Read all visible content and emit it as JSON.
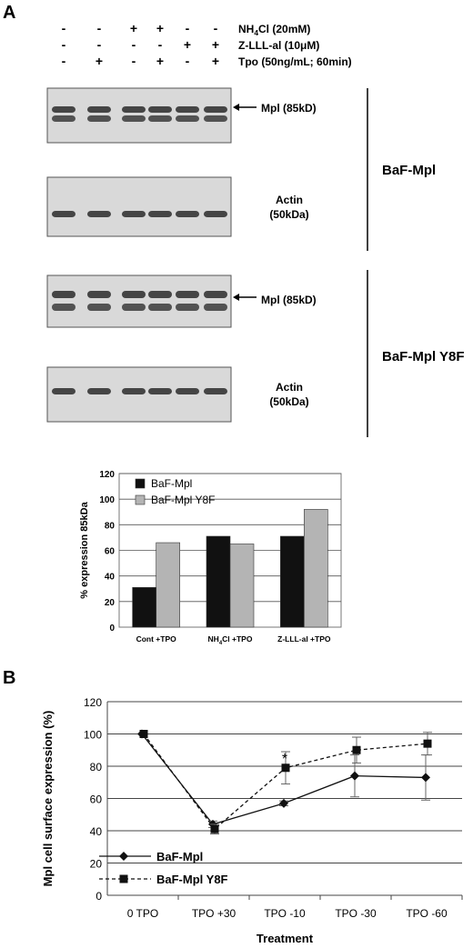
{
  "panel_a": {
    "letter": "A",
    "treatments": [
      {
        "label_main": "NH",
        "label_sub": "4",
        "label_rest": "Cl (20mM)",
        "signs": [
          "-",
          "-",
          "+",
          "+",
          "-",
          "-"
        ]
      },
      {
        "label_main": "Z-LLL-al (10",
        "label_sub": "",
        "label_rest": "μM)",
        "signs": [
          "-",
          "-",
          "-",
          "-",
          "+",
          "+"
        ]
      },
      {
        "label_main": "Tpo (50ng/mL; 60min)",
        "label_sub": "",
        "label_rest": "",
        "signs": [
          "-",
          "+",
          "-",
          "+",
          "-",
          "+"
        ]
      }
    ],
    "blot_labels": {
      "mpl": "Mpl (85kD)",
      "actin_line1": "Actin",
      "actin_line2": "(50kDa)"
    },
    "cell_lines": [
      "BaF-Mpl",
      "BaF-Mpl Y8F"
    ]
  },
  "panel_b_letter": "B",
  "chart_data": [
    {
      "type": "bar",
      "title": "",
      "ylabel": "% expression 85kDa",
      "xlabel": "",
      "categories": [
        "Cont +TPO",
        "NH4Cl +TPO",
        "Z-LLL-al +TPO"
      ],
      "category_display": [
        {
          "main": "Cont +TPO",
          "sub": "",
          "rest": ""
        },
        {
          "main": "NH",
          "sub": "4",
          "rest": "Cl +TPO"
        },
        {
          "main": "Z-LLL-al +TPO",
          "sub": "",
          "rest": ""
        }
      ],
      "series": [
        {
          "name": "BaF-Mpl",
          "values": [
            31,
            71,
            71
          ],
          "color": "#111111"
        },
        {
          "name": "BaF-Mpl Y8F",
          "values": [
            66,
            65,
            92
          ],
          "color": "#b4b4b4"
        }
      ],
      "ylim": [
        0,
        120
      ],
      "yticks": [
        0,
        20,
        40,
        60,
        80,
        100,
        120
      ],
      "grid": true,
      "legend": "top-left"
    },
    {
      "type": "line",
      "title": "",
      "ylabel": "Mpl cell surface expression (%)",
      "xlabel": "Treatment",
      "categories": [
        "0 TPO",
        "TPO +30",
        "TPO -10",
        "TPO -30",
        "TPO -60"
      ],
      "series": [
        {
          "name": "BaF-Mpl",
          "marker": "diamond",
          "line": "solid",
          "values": [
            100,
            44,
            57,
            74,
            73
          ],
          "errors": [
            0,
            2,
            1.5,
            13,
            14
          ]
        },
        {
          "name": "BaF-Mpl Y8F",
          "marker": "square",
          "line": "dashed",
          "values": [
            100,
            41,
            79,
            90,
            94
          ],
          "errors": [
            0,
            3,
            10,
            8,
            7
          ]
        }
      ],
      "annotations": [
        {
          "text": "*",
          "category": "TPO -10",
          "y": 85
        }
      ],
      "ylim": [
        0,
        120
      ],
      "yticks": [
        0,
        20,
        40,
        60,
        80,
        100,
        120
      ],
      "grid": true,
      "legend": "bottom-left"
    }
  ]
}
